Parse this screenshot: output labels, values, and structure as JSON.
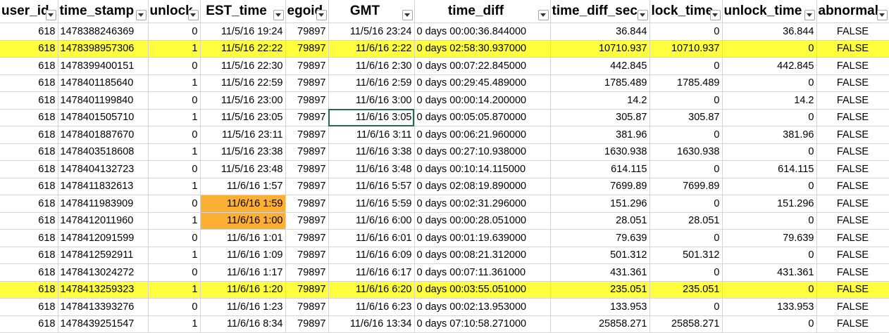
{
  "colors": {
    "row_highlight": "#ffff3d",
    "cell_highlight": "#fbb034",
    "selection": "#1e7145",
    "gridline": "#d4d4d4"
  },
  "columns": [
    {
      "key": "user_id",
      "label": "user_id",
      "align": "r"
    },
    {
      "key": "time_stamp",
      "label": "time_stamp",
      "align": "l"
    },
    {
      "key": "unlock",
      "label": "unlock",
      "align": "r"
    },
    {
      "key": "EST_time",
      "label": "EST_time",
      "align": "r"
    },
    {
      "key": "egoid",
      "label": "egoid",
      "align": "r"
    },
    {
      "key": "GMT",
      "label": "GMT",
      "align": "r"
    },
    {
      "key": "time_diff",
      "label": "time_diff",
      "align": "l"
    },
    {
      "key": "time_diff_sec",
      "label": "time_diff_sec",
      "align": "r"
    },
    {
      "key": "lock_time",
      "label": "lock_time",
      "align": "r"
    },
    {
      "key": "unlock_time",
      "label": "unlock_time",
      "align": "r"
    },
    {
      "key": "abnormal",
      "label": "abnormal",
      "align": "c"
    }
  ],
  "rows": [
    {
      "cells": [
        "618",
        "1478388246369",
        "0",
        "11/5/16 19:24",
        "79897",
        "11/5/16 23:24",
        "0 days 00:00:36.844000",
        "36.844",
        "0",
        "36.844",
        "FALSE"
      ],
      "highlight": false
    },
    {
      "cells": [
        "618",
        "1478398957306",
        "1",
        "11/5/16 22:22",
        "79897",
        "11/6/16 2:22",
        "0 days 02:58:30.937000",
        "10710.937",
        "10710.937",
        "0",
        "FALSE"
      ],
      "highlight": true
    },
    {
      "cells": [
        "618",
        "1478399400151",
        "0",
        "11/5/16 22:30",
        "79897",
        "11/6/16 2:30",
        "0 days 00:07:22.845000",
        "442.845",
        "0",
        "442.845",
        "FALSE"
      ],
      "highlight": false
    },
    {
      "cells": [
        "618",
        "1478401185640",
        "1",
        "11/5/16 22:59",
        "79897",
        "11/6/16 2:59",
        "0 days 00:29:45.489000",
        "1785.489",
        "1785.489",
        "0",
        "FALSE"
      ],
      "highlight": false
    },
    {
      "cells": [
        "618",
        "1478401199840",
        "0",
        "11/5/16 23:00",
        "79897",
        "11/6/16 3:00",
        "0 days 00:00:14.200000",
        "14.2",
        "0",
        "14.2",
        "FALSE"
      ],
      "highlight": false
    },
    {
      "cells": [
        "618",
        "1478401505710",
        "1",
        "11/5/16 23:05",
        "79897",
        "11/6/16 3:05",
        "0 days 00:05:05.870000",
        "305.87",
        "305.87",
        "0",
        "FALSE"
      ],
      "highlight": false
    },
    {
      "cells": [
        "618",
        "1478401887670",
        "0",
        "11/5/16 23:11",
        "79897",
        "11/6/16 3:11",
        "0 days 00:06:21.960000",
        "381.96",
        "0",
        "381.96",
        "FALSE"
      ],
      "highlight": false
    },
    {
      "cells": [
        "618",
        "1478403518608",
        "1",
        "11/5/16 23:38",
        "79897",
        "11/6/16 3:38",
        "0 days 00:27:10.938000",
        "1630.938",
        "1630.938",
        "0",
        "FALSE"
      ],
      "highlight": false
    },
    {
      "cells": [
        "618",
        "1478404132723",
        "0",
        "11/5/16 23:48",
        "79897",
        "11/6/16 3:48",
        "0 days 00:10:14.115000",
        "614.115",
        "0",
        "614.115",
        "FALSE"
      ],
      "highlight": false
    },
    {
      "cells": [
        "618",
        "1478411832613",
        "1",
        "11/6/16 1:57",
        "79897",
        "11/6/16 5:57",
        "0 days 02:08:19.890000",
        "7699.89",
        "7699.89",
        "0",
        "FALSE"
      ],
      "highlight": false
    },
    {
      "cells": [
        "618",
        "1478411983909",
        "0",
        "11/6/16 1:59",
        "79897",
        "11/6/16 5:59",
        "0 days 00:02:31.296000",
        "151.296",
        "0",
        "151.296",
        "FALSE"
      ],
      "highlight": false,
      "orange_col": 3
    },
    {
      "cells": [
        "618",
        "1478412011960",
        "1",
        "11/6/16 1:00",
        "79897",
        "11/6/16 6:00",
        "0 days 00:00:28.051000",
        "28.051",
        "28.051",
        "0",
        "FALSE"
      ],
      "highlight": false,
      "orange_col": 3
    },
    {
      "cells": [
        "618",
        "1478412091599",
        "0",
        "11/6/16 1:01",
        "79897",
        "11/6/16 6:01",
        "0 days 00:01:19.639000",
        "79.639",
        "0",
        "79.639",
        "FALSE"
      ],
      "highlight": false
    },
    {
      "cells": [
        "618",
        "1478412592911",
        "1",
        "11/6/16 1:09",
        "79897",
        "11/6/16 6:09",
        "0 days 00:08:21.312000",
        "501.312",
        "501.312",
        "0",
        "FALSE"
      ],
      "highlight": false
    },
    {
      "cells": [
        "618",
        "1478413024272",
        "0",
        "11/6/16 1:17",
        "79897",
        "11/6/16 6:17",
        "0 days 00:07:11.361000",
        "431.361",
        "0",
        "431.361",
        "FALSE"
      ],
      "highlight": false
    },
    {
      "cells": [
        "618",
        "1478413259323",
        "1",
        "11/6/16 1:20",
        "79897",
        "11/6/16 6:20",
        "0 days 00:03:55.051000",
        "235.051",
        "235.051",
        "0",
        "FALSE"
      ],
      "highlight": true
    },
    {
      "cells": [
        "618",
        "1478413393276",
        "0",
        "11/6/16 1:23",
        "79897",
        "11/6/16 6:23",
        "0 days 00:02:13.953000",
        "133.953",
        "0",
        "133.953",
        "FALSE"
      ],
      "highlight": false
    },
    {
      "cells": [
        "618",
        "1478439251547",
        "1",
        "11/6/16 8:34",
        "79897",
        "11/6/16 13:34",
        "0 days 07:10:58.271000",
        "25858.271",
        "25858.271",
        "0",
        "FALSE"
      ],
      "highlight": false
    }
  ],
  "selected_cell": {
    "row": 5,
    "col": 5
  }
}
